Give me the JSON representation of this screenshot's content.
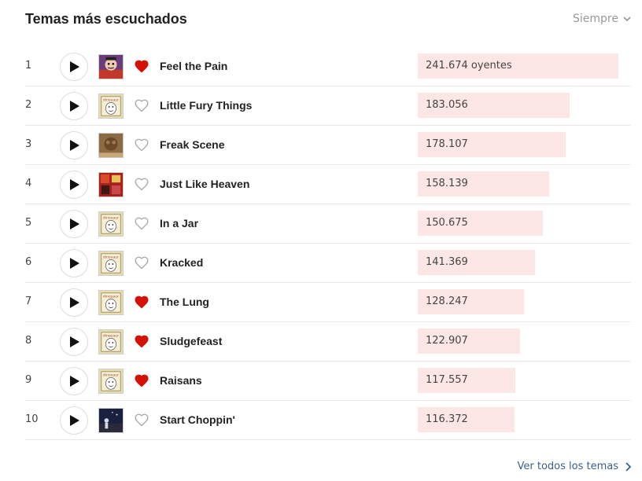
{
  "header": {
    "title": "Temas más escuchados",
    "period_label": "Siempre"
  },
  "colors": {
    "accent": "#d51007",
    "bar": "#fce6e6",
    "link": "#3b5f8c"
  },
  "tracks": [
    {
      "rank": "1",
      "name": "Feel the Pain",
      "listeners": "241.674 oyentes",
      "listeners_value": 241674,
      "loved": true,
      "art": "art-cartoon"
    },
    {
      "rank": "2",
      "name": "Little Fury Things",
      "listeners": "183.056",
      "listeners_value": 183056,
      "loved": false,
      "art": "art-beige"
    },
    {
      "rank": "3",
      "name": "Freak Scene",
      "listeners": "178.107",
      "listeners_value": 178107,
      "loved": false,
      "art": "art-brown"
    },
    {
      "rank": "4",
      "name": "Just Like Heaven",
      "listeners": "158.139",
      "listeners_value": 158139,
      "loved": false,
      "art": "art-red"
    },
    {
      "rank": "5",
      "name": "In a Jar",
      "listeners": "150.675",
      "listeners_value": 150675,
      "loved": false,
      "art": "art-beige"
    },
    {
      "rank": "6",
      "name": "Kracked",
      "listeners": "141.369",
      "listeners_value": 141369,
      "loved": false,
      "art": "art-beige"
    },
    {
      "rank": "7",
      "name": "The Lung",
      "listeners": "128.247",
      "listeners_value": 128247,
      "loved": true,
      "art": "art-beige"
    },
    {
      "rank": "8",
      "name": "Sludgefeast",
      "listeners": "122.907",
      "listeners_value": 122907,
      "loved": true,
      "art": "art-beige"
    },
    {
      "rank": "9",
      "name": "Raisans",
      "listeners": "117.557",
      "listeners_value": 117557,
      "loved": true,
      "art": "art-beige"
    },
    {
      "rank": "10",
      "name": "Start Choppin'",
      "listeners": "116.372",
      "listeners_value": 116372,
      "loved": false,
      "art": "art-night"
    }
  ],
  "footer": {
    "see_all_label": "Ver todos los temas"
  }
}
